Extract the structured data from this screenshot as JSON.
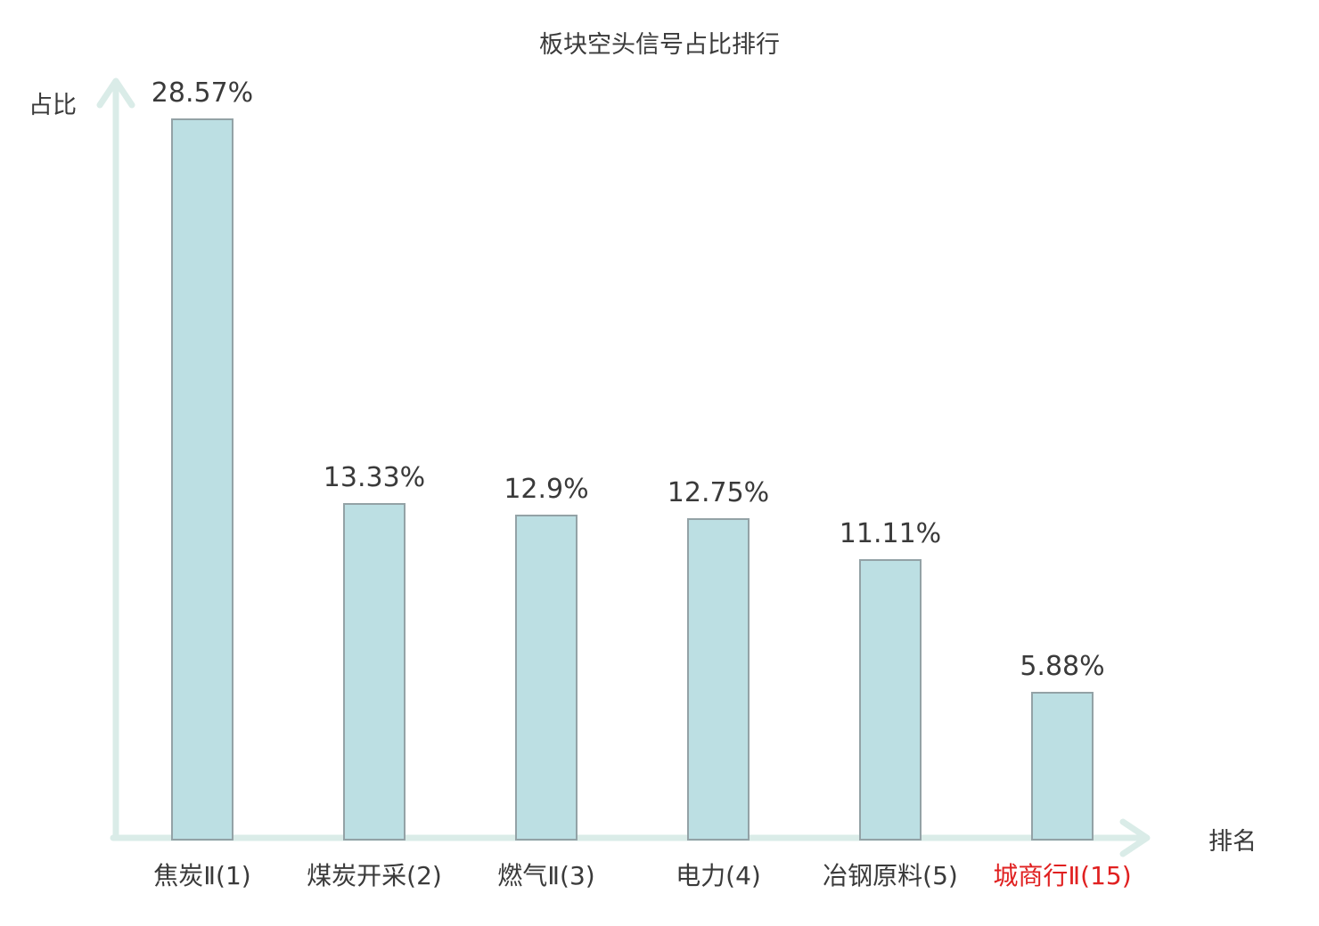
{
  "chart_data": {
    "type": "bar",
    "title": "板块空头信号占比排行",
    "xlabel": "排名",
    "ylabel": "占比",
    "categories": [
      "焦炭Ⅱ(1)",
      "煤炭开采(2)",
      "燃气Ⅱ(3)",
      "电力(4)",
      "冶钢原料(5)",
      "城商行Ⅱ(15)"
    ],
    "values": [
      28.57,
      13.33,
      12.9,
      12.75,
      11.11,
      5.88
    ],
    "value_labels": [
      "28.57%",
      "13.33%",
      "12.9%",
      "12.75%",
      "11.11%",
      "5.88%"
    ],
    "highlighted_category_index": 5,
    "ylim": [
      0,
      30
    ],
    "grid": false,
    "legend": null,
    "colors": {
      "bar_fill": "#bcdfe3",
      "bar_border": "#93a2a6",
      "axis": "#daece8",
      "text": "#3a3a3a",
      "highlight": "#e02020"
    }
  }
}
